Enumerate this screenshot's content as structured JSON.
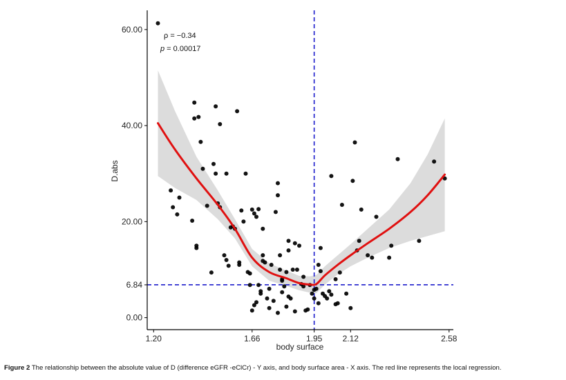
{
  "chart_data": {
    "type": "scatter",
    "xlabel": "body surface",
    "ylabel": "D.abs",
    "xlim": [
      1.17,
      2.6
    ],
    "ylim": [
      -2.5,
      64
    ],
    "x_ticks": [
      1.2,
      1.66,
      1.95,
      2.12,
      2.58
    ],
    "x_tick_labels": [
      "1.20",
      "1.66",
      "1.95",
      "2.12",
      "2.58"
    ],
    "y_ticks": [
      0,
      6.84,
      20,
      40,
      60
    ],
    "y_tick_labels": [
      "0.00",
      "6.84",
      "20.00",
      "40.00",
      "60.00"
    ],
    "grid": false,
    "reference_lines": {
      "vertical_x": 1.95,
      "horizontal_y": 6.84,
      "color": "#1a1acc",
      "style": "dashed"
    },
    "annotations": {
      "rho": "ρ = −0.34",
      "p_label": "p",
      "p_value": " = 0.00017"
    },
    "point_color": "#000000",
    "smooth_color": "#e01010",
    "band_color": "#dcdcdc",
    "points": [
      [
        1.22,
        61.3
      ],
      [
        1.28,
        26.5
      ],
      [
        1.29,
        23.0
      ],
      [
        1.31,
        21.5
      ],
      [
        1.32,
        25.0
      ],
      [
        1.38,
        20.2
      ],
      [
        1.39,
        44.8
      ],
      [
        1.39,
        41.5
      ],
      [
        1.4,
        15.0
      ],
      [
        1.4,
        14.5
      ],
      [
        1.41,
        41.8
      ],
      [
        1.42,
        36.6
      ],
      [
        1.43,
        31.0
      ],
      [
        1.45,
        23.3
      ],
      [
        1.47,
        9.4
      ],
      [
        1.48,
        32.0
      ],
      [
        1.49,
        44.0
      ],
      [
        1.49,
        30.0
      ],
      [
        1.5,
        23.8
      ],
      [
        1.51,
        23.0
      ],
      [
        1.51,
        40.3
      ],
      [
        1.53,
        13.0
      ],
      [
        1.54,
        12.0
      ],
      [
        1.54,
        30.0
      ],
      [
        1.55,
        10.8
      ],
      [
        1.56,
        18.8
      ],
      [
        1.57,
        19.0
      ],
      [
        1.58,
        18.5
      ],
      [
        1.59,
        43.0
      ],
      [
        1.6,
        11.0
      ],
      [
        1.6,
        11.5
      ],
      [
        1.61,
        22.3
      ],
      [
        1.62,
        20.0
      ],
      [
        1.63,
        30.0
      ],
      [
        1.64,
        9.5
      ],
      [
        1.65,
        6.8
      ],
      [
        1.65,
        9.2
      ],
      [
        1.66,
        22.5
      ],
      [
        1.66,
        1.5
      ],
      [
        1.67,
        2.6
      ],
      [
        1.67,
        21.7
      ],
      [
        1.68,
        21.0
      ],
      [
        1.68,
        3.2
      ],
      [
        1.69,
        6.8
      ],
      [
        1.69,
        22.6
      ],
      [
        1.7,
        5.5
      ],
      [
        1.7,
        5.0
      ],
      [
        1.71,
        18.5
      ],
      [
        1.71,
        13.0
      ],
      [
        1.71,
        11.8
      ],
      [
        1.72,
        11.5
      ],
      [
        1.73,
        4.0
      ],
      [
        1.74,
        2.0
      ],
      [
        1.74,
        6.0
      ],
      [
        1.75,
        11.0
      ],
      [
        1.76,
        3.5
      ],
      [
        1.77,
        22.0
      ],
      [
        1.78,
        25.5
      ],
      [
        1.78,
        28.0
      ],
      [
        1.78,
        1.0
      ],
      [
        1.79,
        13.0
      ],
      [
        1.79,
        10.0
      ],
      [
        1.8,
        5.3
      ],
      [
        1.8,
        7.7
      ],
      [
        1.8,
        8.0
      ],
      [
        1.81,
        6.5
      ],
      [
        1.82,
        2.3
      ],
      [
        1.82,
        9.5
      ],
      [
        1.83,
        14.0
      ],
      [
        1.83,
        4.4
      ],
      [
        1.83,
        16.0
      ],
      [
        1.84,
        4.0
      ],
      [
        1.85,
        10.0
      ],
      [
        1.86,
        1.3
      ],
      [
        1.86,
        15.5
      ],
      [
        1.87,
        10.0
      ],
      [
        1.88,
        15.0
      ],
      [
        1.89,
        7.0
      ],
      [
        1.9,
        8.5
      ],
      [
        1.9,
        6.5
      ],
      [
        1.91,
        1.5
      ],
      [
        1.92,
        1.7
      ],
      [
        1.93,
        6.8
      ],
      [
        1.94,
        5.0
      ],
      [
        1.95,
        4.0
      ],
      [
        1.95,
        5.8
      ],
      [
        1.96,
        6.0
      ],
      [
        1.97,
        3.0
      ],
      [
        1.97,
        11.0
      ],
      [
        1.98,
        14.5
      ],
      [
        1.98,
        9.7
      ],
      [
        1.99,
        5.0
      ],
      [
        2.0,
        4.5
      ],
      [
        2.01,
        4.0
      ],
      [
        2.02,
        5.5
      ],
      [
        2.03,
        4.8
      ],
      [
        2.03,
        29.5
      ],
      [
        2.05,
        8.0
      ],
      [
        2.05,
        2.8
      ],
      [
        2.06,
        3.0
      ],
      [
        2.07,
        9.4
      ],
      [
        2.08,
        23.5
      ],
      [
        2.1,
        5.0
      ],
      [
        2.12,
        2.0
      ],
      [
        2.13,
        28.5
      ],
      [
        2.14,
        36.5
      ],
      [
        2.15,
        14.0
      ],
      [
        2.16,
        16.0
      ],
      [
        2.17,
        22.5
      ],
      [
        2.2,
        13.0
      ],
      [
        2.22,
        12.5
      ],
      [
        2.24,
        21.0
      ],
      [
        2.3,
        12.5
      ],
      [
        2.31,
        15.0
      ],
      [
        2.34,
        33.0
      ],
      [
        2.44,
        16.0
      ],
      [
        2.51,
        32.5
      ],
      [
        2.56,
        29.0
      ]
    ],
    "smooth": [
      [
        1.22,
        40.5
      ],
      [
        1.3,
        35.0
      ],
      [
        1.4,
        29.0
      ],
      [
        1.5,
        23.5
      ],
      [
        1.58,
        18.5
      ],
      [
        1.66,
        12.5
      ],
      [
        1.74,
        9.5
      ],
      [
        1.82,
        8.2
      ],
      [
        1.88,
        7.2
      ],
      [
        1.93,
        6.9
      ],
      [
        1.96,
        7.0
      ],
      [
        2.0,
        8.8
      ],
      [
        2.06,
        11.0
      ],
      [
        2.12,
        13.0
      ],
      [
        2.2,
        15.5
      ],
      [
        2.3,
        18.5
      ],
      [
        2.4,
        22.0
      ],
      [
        2.48,
        25.5
      ],
      [
        2.56,
        29.8
      ]
    ],
    "band_upper": [
      [
        1.22,
        51.5
      ],
      [
        1.3,
        43.0
      ],
      [
        1.4,
        33.5
      ],
      [
        1.5,
        26.5
      ],
      [
        1.58,
        20.5
      ],
      [
        1.66,
        14.3
      ],
      [
        1.74,
        11.3
      ],
      [
        1.82,
        9.8
      ],
      [
        1.88,
        8.7
      ],
      [
        1.93,
        8.6
      ],
      [
        1.96,
        8.9
      ],
      [
        2.0,
        10.7
      ],
      [
        2.06,
        13.0
      ],
      [
        2.12,
        15.3
      ],
      [
        2.2,
        18.5
      ],
      [
        2.3,
        22.5
      ],
      [
        2.4,
        28.0
      ],
      [
        2.48,
        34.0
      ],
      [
        2.56,
        41.5
      ]
    ],
    "band_lower": [
      [
        1.22,
        29.5
      ],
      [
        1.3,
        27.0
      ],
      [
        1.4,
        24.5
      ],
      [
        1.5,
        20.5
      ],
      [
        1.58,
        16.5
      ],
      [
        1.66,
        10.7
      ],
      [
        1.74,
        7.7
      ],
      [
        1.82,
        6.6
      ],
      [
        1.88,
        5.7
      ],
      [
        1.93,
        5.2
      ],
      [
        1.96,
        5.1
      ],
      [
        2.0,
        6.9
      ],
      [
        2.06,
        9.0
      ],
      [
        2.12,
        10.7
      ],
      [
        2.2,
        12.5
      ],
      [
        2.3,
        14.5
      ],
      [
        2.4,
        16.0
      ],
      [
        2.48,
        17.0
      ],
      [
        2.56,
        18.0
      ]
    ]
  },
  "caption": {
    "label": "Figure 2",
    "text": " The relationship between the absolute value of D (difference eGFR -eClCr) - Y axis, and body surface area - X axis. The red line represents the local regression."
  }
}
